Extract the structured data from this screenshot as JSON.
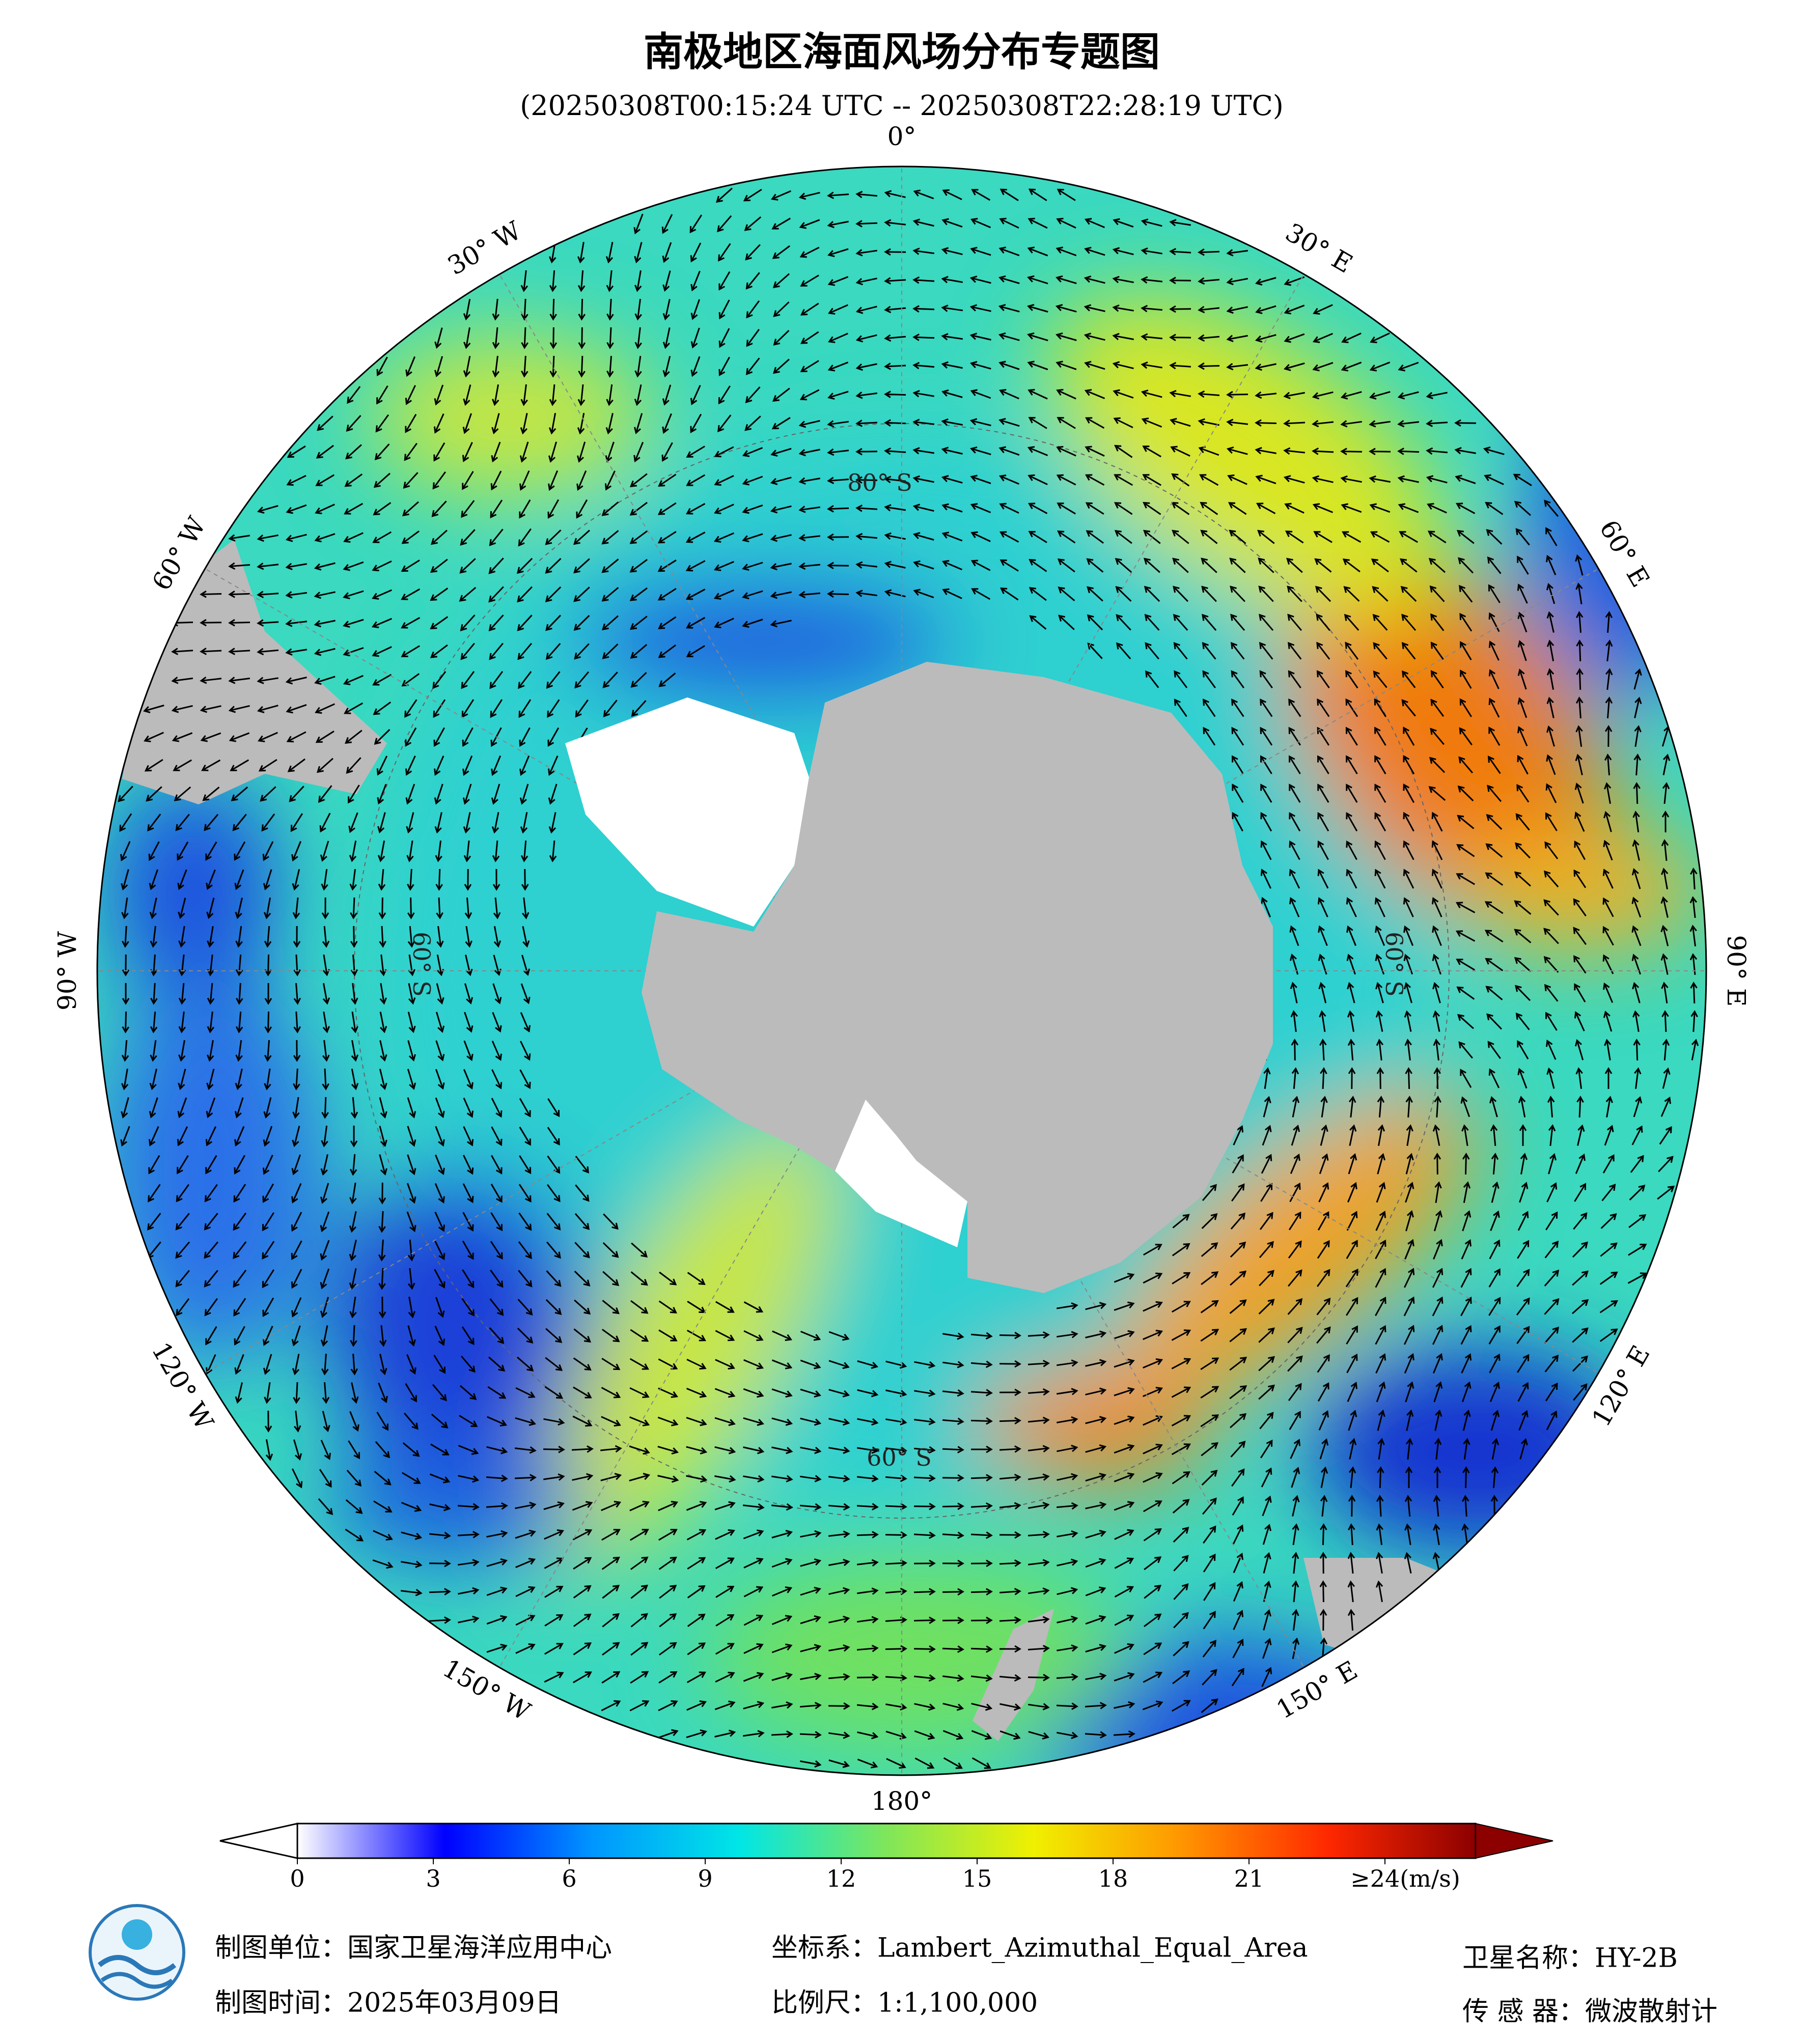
{
  "header": {
    "title": "南极地区海面风场分布专题图",
    "subtitle": "(20250308T00:15:24 UTC -- 20250308T22:28:19 UTC)"
  },
  "map": {
    "lon_labels": [
      "0°",
      "30° E",
      "60° E",
      "90° E",
      "120° E",
      "150° E",
      "180°",
      "150° W",
      "120° W",
      "90° W",
      "60° W",
      "30° W"
    ],
    "lat_labels": [
      "80° S",
      "60° S",
      "60° S",
      "60° S"
    ]
  },
  "colorbar": {
    "lim": [
      0,
      26
    ],
    "ticks": [
      0,
      3,
      6,
      9,
      12,
      15,
      18,
      21,
      {
        "value": 24,
        "label": "≥24(m/s)"
      }
    ],
    "colors": [
      "#ffffff",
      "#0000ff",
      "#0096ff",
      "#00e6e6",
      "#7fe65a",
      "#f0f000",
      "#ff9600",
      "#ff2800",
      "#8c0000"
    ]
  },
  "footer": {
    "unit": "制图单位：国家卫星海洋应用中心",
    "date": "制图时间：2025年03月09日",
    "crs": "坐标系：Lambert_Azimuthal_Equal_Area",
    "scale": "比例尺：1:1,100,000",
    "satellite": "卫星名称：HY-2B",
    "sensor": "传 感 器：微波散射计"
  }
}
